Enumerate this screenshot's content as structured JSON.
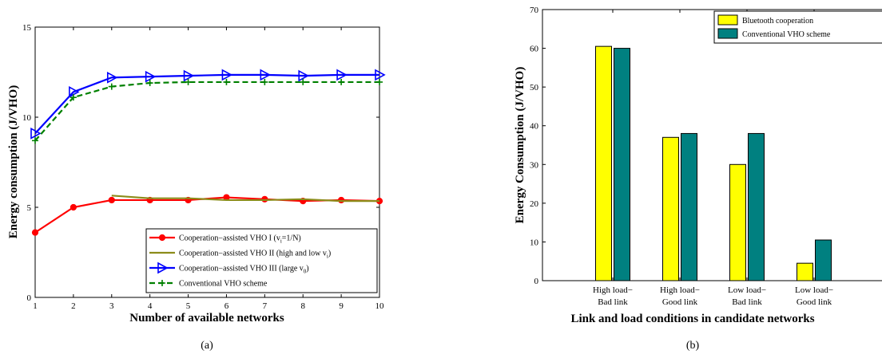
{
  "chart_data": [
    {
      "type": "line",
      "caption": "(a)",
      "xlabel": "Number of available networks",
      "ylabel": "Energy consumption (J/VHO)",
      "xlim": [
        1,
        10
      ],
      "ylim": [
        0,
        15
      ],
      "xticks": [
        1,
        2,
        3,
        4,
        5,
        6,
        7,
        8,
        9,
        10
      ],
      "yticks": [
        0,
        5,
        10,
        15
      ],
      "legend_position": "bottom-right",
      "series": [
        {
          "name": "Cooperation−assisted VHO I (v",
          "name_sub": "i",
          "name_tail": "=1/N)",
          "color": "#ff0000",
          "marker": "circle",
          "dash": "solid",
          "x": [
            1,
            2,
            3,
            4,
            5,
            6,
            7,
            8,
            9,
            10
          ],
          "y": [
            3.6,
            5.0,
            5.4,
            5.4,
            5.4,
            5.55,
            5.45,
            5.35,
            5.4,
            5.35
          ]
        },
        {
          "name": "Cooperation−assisted VHO II (high and low v",
          "name_sub": "i",
          "name_tail": ")",
          "color": "#8c8c1a",
          "marker": "none",
          "dash": "solid",
          "x": [
            3,
            4,
            5,
            6,
            7,
            8,
            9,
            10
          ],
          "y": [
            5.65,
            5.5,
            5.5,
            5.4,
            5.4,
            5.45,
            5.35,
            5.35
          ]
        },
        {
          "name": "Cooperation−assisted VHO III (large v",
          "name_sub": "0",
          "name_tail": ")",
          "color": "#0000ff",
          "marker": "triangle-right",
          "dash": "solid",
          "x": [
            1,
            2,
            3,
            4,
            5,
            6,
            7,
            8,
            9,
            10
          ],
          "y": [
            9.1,
            11.4,
            12.2,
            12.25,
            12.3,
            12.35,
            12.35,
            12.3,
            12.35,
            12.35
          ]
        },
        {
          "name": "Conventional VHO scheme",
          "name_sub": "",
          "name_tail": "",
          "color": "#008000",
          "marker": "plus",
          "dash": "dashed",
          "x": [
            1,
            2,
            3,
            4,
            5,
            6,
            7,
            8,
            9,
            10
          ],
          "y": [
            8.7,
            11.1,
            11.7,
            11.9,
            11.95,
            11.95,
            11.95,
            11.95,
            11.95,
            11.95
          ]
        }
      ]
    },
    {
      "type": "bar",
      "caption": "(b)",
      "xlabel": "Link and load conditions in candidate networks",
      "ylabel": "Energy Consumption (J/VHO)",
      "ylim": [
        0,
        70
      ],
      "yticks": [
        0,
        10,
        20,
        30,
        40,
        50,
        60,
        70
      ],
      "legend_position": "top-right",
      "categories": [
        [
          "High load−",
          "Bad link"
        ],
        [
          "High load−",
          "Good link"
        ],
        [
          "Low load−",
          "Bad link"
        ],
        [
          "Low load−",
          "Good link"
        ]
      ],
      "series": [
        {
          "name": "Bluetooth cooperation",
          "color": "#ffff00",
          "values": [
            60.5,
            37.0,
            30.0,
            4.5
          ]
        },
        {
          "name": "Conventional VHO scheme",
          "color": "#008080",
          "values": [
            60.0,
            38.0,
            38.0,
            10.5
          ]
        }
      ]
    }
  ]
}
